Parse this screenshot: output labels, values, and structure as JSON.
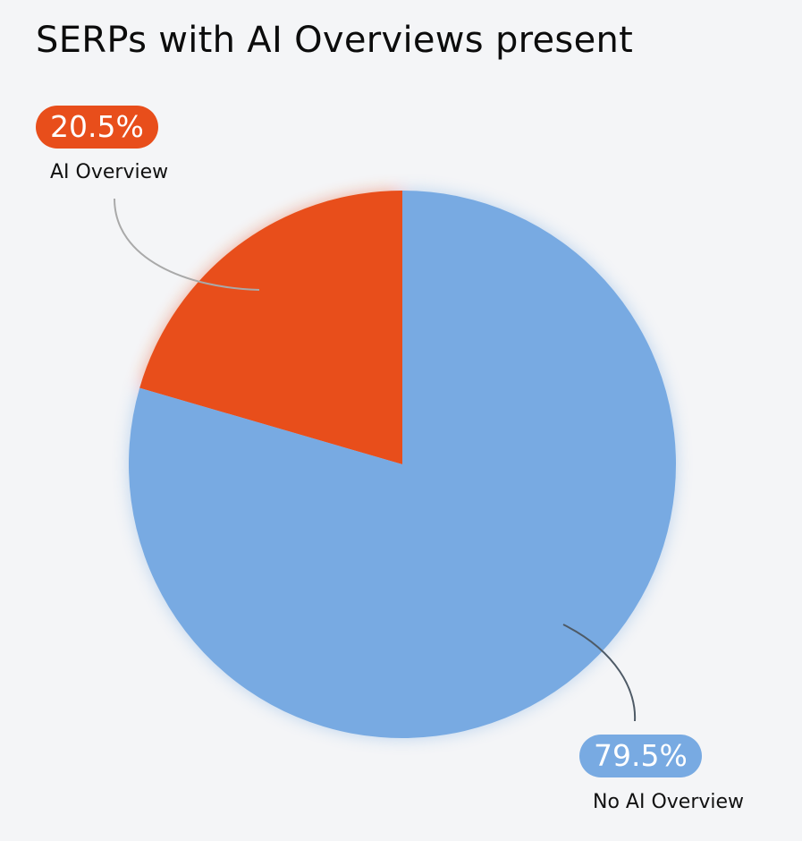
{
  "chart_data": {
    "type": "pie",
    "title": "SERPs with AI Overviews present",
    "slices": [
      {
        "label": "AI Overview",
        "value": 20.5,
        "display": "20.5%",
        "color": "#e84e1b"
      },
      {
        "label": "No AI Overview",
        "value": 79.5,
        "display": "79.5%",
        "color": "#78aae2"
      }
    ],
    "legend": "none"
  }
}
